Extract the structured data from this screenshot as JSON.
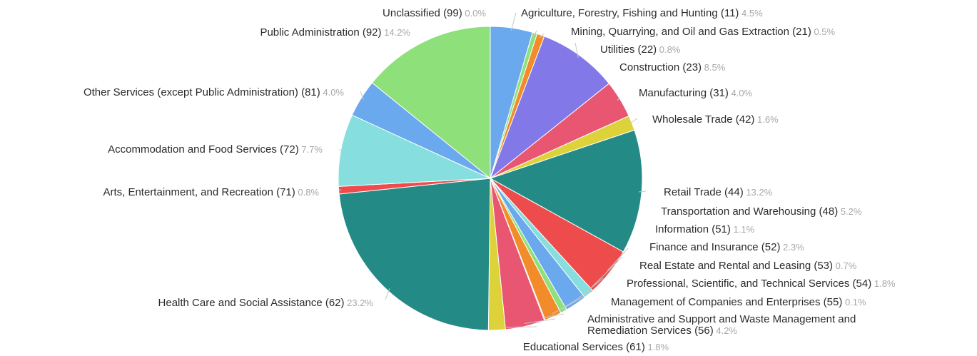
{
  "chart_data": {
    "type": "pie",
    "title": "",
    "slices": [
      {
        "label": "Agriculture, Forestry, Fishing and Hunting (11)",
        "pct_label": "4.5%",
        "value": 4.5,
        "color": "#6aa9ee"
      },
      {
        "label": "Mining, Quarrying, and Oil and Gas Extraction (21)",
        "pct_label": "0.5%",
        "value": 0.5,
        "color": "#8ee07a"
      },
      {
        "label": "Utilities (22)",
        "pct_label": "0.8%",
        "value": 0.8,
        "color": "#f28c2b"
      },
      {
        "label": "Construction (23)",
        "pct_label": "8.5%",
        "value": 8.5,
        "color": "#8278e8"
      },
      {
        "label": "Manufacturing (31)",
        "pct_label": "4.0%",
        "value": 4.0,
        "color": "#e85672"
      },
      {
        "label": "Wholesale Trade (42)",
        "pct_label": "1.6%",
        "value": 1.6,
        "color": "#ddd23a"
      },
      {
        "label": "Retail Trade (44)",
        "pct_label": "13.2%",
        "value": 13.2,
        "color": "#248a86"
      },
      {
        "label": "Transportation and Warehousing (48)",
        "pct_label": "5.2%",
        "value": 5.2,
        "color": "#ee4c4c"
      },
      {
        "label": "Information (51)",
        "pct_label": "1.1%",
        "value": 1.1,
        "color": "#86dede"
      },
      {
        "label": "Finance and Insurance (52)",
        "pct_label": "2.3%",
        "value": 2.3,
        "color": "#6aa9ee"
      },
      {
        "label": "Real Estate and Rental and Leasing (53)",
        "pct_label": "0.7%",
        "value": 0.7,
        "color": "#8ee07a"
      },
      {
        "label": "Professional, Scientific, and Technical Services (54)",
        "pct_label": "1.8%",
        "value": 1.8,
        "color": "#f28c2b"
      },
      {
        "label": "Management of Companies and Enterprises (55)",
        "pct_label": "0.1%",
        "value": 0.1,
        "color": "#8278e8"
      },
      {
        "label": "Administrative and Support and Waste Management and Remediation Services (56)",
        "pct_label": "4.2%",
        "value": 4.2,
        "color": "#e85672"
      },
      {
        "label": "Educational Services (61)",
        "pct_label": "1.8%",
        "value": 1.8,
        "color": "#ddd23a"
      },
      {
        "label": "Health Care and Social Assistance (62)",
        "pct_label": "23.2%",
        "value": 23.2,
        "color": "#248a86"
      },
      {
        "label": "Arts, Entertainment, and Recreation (71)",
        "pct_label": "0.8%",
        "value": 0.8,
        "color": "#ee4c4c"
      },
      {
        "label": "Accommodation and Food Services (72)",
        "pct_label": "7.7%",
        "value": 7.7,
        "color": "#86dede"
      },
      {
        "label": "Other Services (except Public Administration) (81)",
        "pct_label": "4.0%",
        "value": 4.0,
        "color": "#6aa9ee"
      },
      {
        "label": "Public Administration (92)",
        "pct_label": "14.2%",
        "value": 14.2,
        "color": "#8ee07a"
      },
      {
        "label": "Unclassified (99)",
        "pct_label": "0.0%",
        "value": 0.0,
        "color": "#f28c2b"
      }
    ]
  }
}
